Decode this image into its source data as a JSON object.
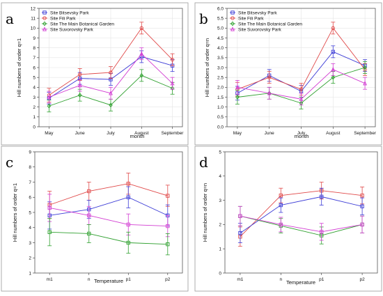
{
  "figure": {
    "panel_letters": [
      "a",
      "b",
      "c",
      "d"
    ]
  },
  "chart_data": [
    {
      "id": "a",
      "type": "line",
      "xlabel": "month",
      "ylabel": "Hill numbers of order q=1",
      "categories": [
        "May",
        "June",
        "July",
        "August",
        "September"
      ],
      "ylim": [
        0,
        12
      ],
      "yticks": [
        0,
        1,
        2,
        3,
        4,
        5,
        6,
        7,
        8,
        9,
        10,
        11,
        12
      ],
      "grid": true,
      "legend_position": "top-left",
      "series": [
        {
          "name": "Site  Bitsevsky Park",
          "color": "#3b3bd6",
          "marker": "square",
          "values": [
            2.9,
            4.9,
            4.8,
            7.1,
            6.2
          ],
          "err": [
            0.6,
            0.6,
            0.6,
            0.6,
            0.6
          ]
        },
        {
          "name": "Site  Fili Park",
          "color": "#e04848",
          "marker": "circle",
          "values": [
            3.2,
            5.3,
            5.5,
            10.0,
            6.8
          ],
          "err": [
            0.7,
            0.6,
            0.6,
            0.6,
            0.6
          ]
        },
        {
          "name": "Site  The Main Botanical Garden",
          "color": "#2fa02f",
          "marker": "diamond",
          "values": [
            2.1,
            3.2,
            2.2,
            5.2,
            3.9
          ],
          "err": [
            0.6,
            0.6,
            0.6,
            0.6,
            0.6
          ]
        },
        {
          "name": "Site  Suvorovsky Park",
          "color": "#d23cd2",
          "marker": "triangle",
          "values": [
            3.0,
            4.2,
            3.4,
            7.4,
            4.4
          ],
          "err": [
            0.6,
            0.6,
            0.6,
            0.6,
            0.6
          ]
        }
      ]
    },
    {
      "id": "b",
      "type": "line",
      "xlabel": "month",
      "ylabel": "Hill numbers of order q=n",
      "categories": [
        "May",
        "June",
        "July",
        "August",
        "September"
      ],
      "ylim": [
        0,
        6
      ],
      "yticks": [
        0.0,
        0.5,
        1.0,
        1.5,
        2.0,
        2.5,
        3.0,
        3.5,
        4.0,
        4.5,
        5.0,
        5.5,
        6.0
      ],
      "ytick_decimals": 1,
      "grid": true,
      "legend_position": "top-left",
      "series": [
        {
          "name": "Site  Bitsevsky Park",
          "color": "#3b3bd6",
          "marker": "square",
          "values": [
            1.7,
            2.6,
            1.8,
            3.8,
            3.1
          ],
          "err": [
            0.35,
            0.3,
            0.3,
            0.3,
            0.3
          ]
        },
        {
          "name": "Site  Fili Park",
          "color": "#e04848",
          "marker": "circle",
          "values": [
            1.9,
            2.5,
            1.9,
            5.0,
            2.9
          ],
          "err": [
            0.35,
            0.3,
            0.3,
            0.3,
            0.3
          ]
        },
        {
          "name": "Site  The Main Botanical Garden",
          "color": "#2fa02f",
          "marker": "diamond",
          "values": [
            1.5,
            1.7,
            1.2,
            2.5,
            3.0
          ],
          "err": [
            0.35,
            0.3,
            0.3,
            0.3,
            0.3
          ]
        },
        {
          "name": "Site  Suvorovsky Park",
          "color": "#d23cd2",
          "marker": "triangle",
          "values": [
            2.0,
            1.7,
            1.4,
            2.9,
            2.2
          ],
          "err": [
            0.35,
            0.3,
            0.3,
            0.3,
            0.3
          ]
        }
      ]
    },
    {
      "id": "c",
      "type": "line",
      "xlabel": "Temperature",
      "ylabel": "Hill numbers of order q=1",
      "categories": [
        "m1",
        "n",
        "p1",
        "p2"
      ],
      "ylim": [
        1,
        9
      ],
      "yticks": [
        1,
        2,
        3,
        4,
        5,
        6,
        7,
        8,
        9
      ],
      "grid": false,
      "series": [
        {
          "color": "#e04848",
          "marker": "square",
          "values": [
            5.5,
            6.4,
            6.9,
            6.1
          ],
          "err": [
            0.9,
            0.6,
            0.7,
            0.7
          ]
        },
        {
          "color": "#3b3bd6",
          "marker": "square",
          "values": [
            4.8,
            5.2,
            6.0,
            4.8
          ],
          "err": [
            0.9,
            0.6,
            0.7,
            0.7
          ]
        },
        {
          "color": "#d23cd2",
          "marker": "square",
          "values": [
            5.3,
            4.8,
            4.2,
            4.1
          ],
          "err": [
            0.9,
            0.6,
            0.7,
            0.7
          ]
        },
        {
          "color": "#2fa02f",
          "marker": "square",
          "values": [
            3.7,
            3.6,
            3.0,
            2.9
          ],
          "err": [
            0.9,
            0.6,
            0.7,
            0.7
          ]
        }
      ]
    },
    {
      "id": "d",
      "type": "line",
      "xlabel": "Temperature",
      "ylabel": "Hill numbers of order q=n",
      "categories": [
        "m1",
        "n",
        "p1",
        "p2"
      ],
      "ylim": [
        0,
        5
      ],
      "yticks": [
        0,
        1,
        2,
        3,
        4,
        5
      ],
      "grid": false,
      "series": [
        {
          "color": "#e04848",
          "marker": "square",
          "values": [
            1.5,
            3.2,
            3.4,
            3.2
          ],
          "err": [
            0.4,
            0.3,
            0.35,
            0.35
          ]
        },
        {
          "color": "#3b3bd6",
          "marker": "square",
          "values": [
            1.65,
            2.8,
            3.15,
            2.75
          ],
          "err": [
            0.4,
            0.3,
            0.35,
            0.35
          ]
        },
        {
          "color": "#2fa02f",
          "marker": "square",
          "values": [
            2.35,
            1.95,
            1.55,
            2.0
          ],
          "err": [
            0.4,
            0.3,
            0.35,
            0.35
          ]
        },
        {
          "color": "#d23cd2",
          "marker": "square",
          "values": [
            2.35,
            2.0,
            1.7,
            2.0
          ],
          "err": [
            0.4,
            0.3,
            0.35,
            0.35
          ]
        }
      ]
    }
  ]
}
